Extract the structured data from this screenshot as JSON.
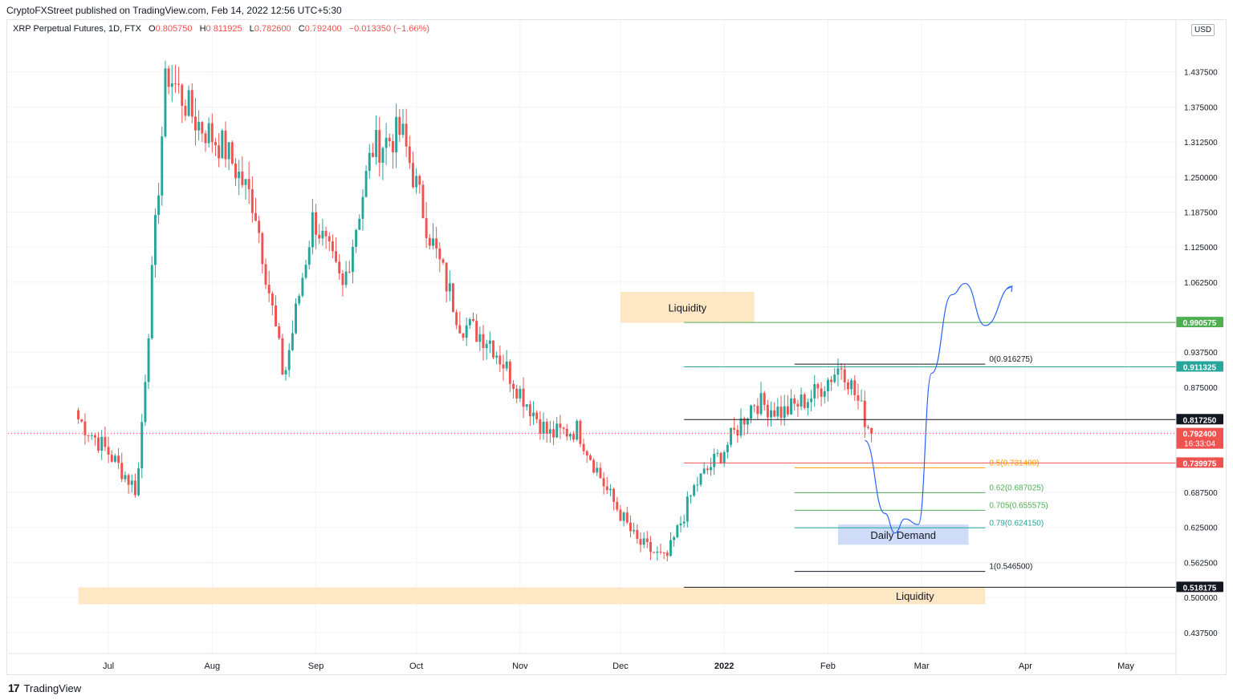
{
  "header": {
    "publisher": "CryptoFXStreet published on TradingView.com, Feb 14, 2022 12:56 UTC+5:30"
  },
  "legend": {
    "symbol": "XRP Perpetual Futures, 1D, FTX",
    "o_label": "O",
    "o": "0.805750",
    "h_label": "H",
    "h": "0.811925",
    "l_label": "L",
    "l": "0.782600",
    "c_label": "C",
    "c": "0.792400",
    "change": "−0.013350 (−1.66%)"
  },
  "currency": "USD",
  "brand": {
    "logo": "17",
    "name": "TradingView"
  },
  "colors": {
    "up": "#26a69a",
    "down": "#ef5350",
    "zone": "#fde7c4",
    "demand": "#cfdcf8",
    "path": "#2962ff"
  },
  "chart_data": {
    "type": "candlestick",
    "x_range": [
      "2022-06-01",
      "2022-05-16"
    ],
    "ylim": [
      0.4,
      1.53
    ],
    "price_ticks": [
      "1.437500",
      "1.375000",
      "1.312500",
      "1.250000",
      "1.187500",
      "1.125000",
      "1.062500",
      "0.937500",
      "0.875000",
      "0.687500",
      "0.625000",
      "0.562500",
      "0.500000",
      "0.437500"
    ],
    "month_labels": [
      {
        "label": "Jul",
        "date": "2021-07-01"
      },
      {
        "label": "Aug",
        "date": "2021-08-01"
      },
      {
        "label": "Sep",
        "date": "2021-09-01"
      },
      {
        "label": "Oct",
        "date": "2021-10-01"
      },
      {
        "label": "Nov",
        "date": "2021-11-01"
      },
      {
        "label": "Dec",
        "date": "2021-12-01"
      },
      {
        "label": "2022",
        "date": "2022-01-01"
      },
      {
        "label": "Feb",
        "date": "2022-02-01"
      },
      {
        "label": "Mar",
        "date": "2022-03-01"
      },
      {
        "label": "Apr",
        "date": "2022-04-01"
      },
      {
        "label": "May",
        "date": "2022-05-01"
      }
    ],
    "key_prices": [
      0.818,
      0.76,
      0.69,
      1.44,
      1.35,
      1.3,
      1.2,
      0.89,
      1.18,
      1.05,
      1.3,
      1.33,
      1.14,
      0.99,
      0.96,
      0.87,
      0.79,
      0.8,
      0.69,
      0.6,
      0.566,
      0.7,
      0.765,
      0.85,
      0.83,
      0.86,
      0.916,
      0.792
    ],
    "levels": [
      {
        "label": "0.990575",
        "value": 0.990575,
        "color": "#4caf50"
      },
      {
        "label": "0.911325",
        "value": 0.911325,
        "color": "#26a69a"
      },
      {
        "label": "0.817250",
        "value": 0.81725,
        "color": "#131722"
      },
      {
        "label": "0.792400",
        "value": 0.7924,
        "color": "#ef5350"
      },
      {
        "label": "0.739975",
        "value": 0.739975,
        "color": "#ef5350"
      },
      {
        "label": "0.518175",
        "value": 0.518175,
        "color": "#131722"
      }
    ],
    "countdown": "16:33:04",
    "fib_levels": [
      {
        "label": "0(0.916275)",
        "value": 0.916275,
        "color": "#131722"
      },
      {
        "label": "0.5(0.731400)",
        "value": 0.7314,
        "color": "#ff9800"
      },
      {
        "label": "0.62(0.687025)",
        "value": 0.687025,
        "color": "#4caf50"
      },
      {
        "label": "0.705(0.655575)",
        "value": 0.655575,
        "color": "#4caf50"
      },
      {
        "label": "0.79(0.624150)",
        "value": 0.62415,
        "color": "#26a69a"
      },
      {
        "label": "1(0.546500)",
        "value": 0.5465,
        "color": "#131722"
      }
    ],
    "zones": [
      {
        "label": "Liquidity",
        "from": "2021-12-01",
        "to": "2022-01-10",
        "low": 0.99,
        "high": 1.045,
        "color": "#fde7c4"
      },
      {
        "label": "Liquidity",
        "from": "2021-06-22",
        "to": "2022-03-20",
        "low": 0.488,
        "high": 0.518,
        "color": "#fde7c4"
      },
      {
        "label": "Daily Demand",
        "from": "2022-02-04",
        "to": "2022-03-15",
        "low": 0.594,
        "high": 0.63,
        "color": "#cfdcf8"
      }
    ],
    "projection": [
      [
        "2022-02-12",
        0.78
      ],
      [
        "2022-02-18",
        0.65
      ],
      [
        "2022-02-21",
        0.615
      ],
      [
        "2022-02-24",
        0.64
      ],
      [
        "2022-02-28",
        0.63
      ],
      [
        "2022-03-04",
        0.9
      ],
      [
        "2022-03-10",
        1.04
      ],
      [
        "2022-03-14",
        1.06
      ],
      [
        "2022-03-20",
        0.985
      ],
      [
        "2022-03-28",
        1.055
      ]
    ]
  }
}
